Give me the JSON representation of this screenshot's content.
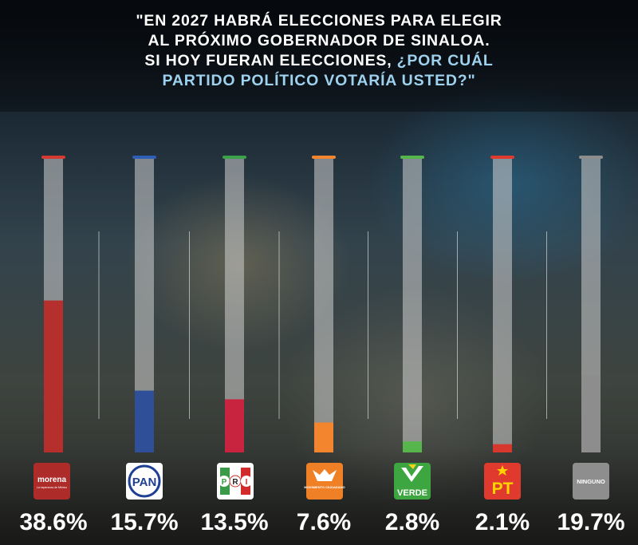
{
  "title": {
    "line1": "\"EN 2027 HABRÁ ELECCIONES PARA ELEGIR",
    "line2": "AL PRÓXIMO GOBERNADOR DE SINALOA.",
    "line3_white": "SI HOY FUERAN ELECCIONES, ",
    "line3_highlight": "¿POR CUÁL",
    "line4": "PARTIDO POLÍTICO VOTARÍA USTED?\""
  },
  "colors": {
    "highlight": "#9ed1ee",
    "track": "#cfcfcf"
  },
  "chart_data": {
    "type": "bar",
    "categories": [
      "morena",
      "PAN",
      "PRI",
      "MOVIMIENTO CIUDADANO",
      "VERDE",
      "PT",
      "NINGUNO"
    ],
    "values": [
      38.6,
      15.7,
      13.5,
      7.6,
      2.8,
      2.1,
      19.7
    ],
    "value_labels": [
      "38.6%",
      "15.7%",
      "13.5%",
      "7.6%",
      "2.8%",
      "2.1%",
      "19.7%"
    ],
    "colors": [
      "#b5302d",
      "#2f4f98",
      "#c8233f",
      "#f2852e",
      "#56b64c",
      "#d7382e",
      "#8d8d8d"
    ],
    "cap_colors": [
      "#d43a2f",
      "#2f5eb8",
      "#3aa34a",
      "#f2852e",
      "#56b64c",
      "#e03a2f",
      "#8d8d8d"
    ],
    "ylim": [
      0,
      75
    ]
  },
  "logos": {
    "morena": {
      "text": "morena",
      "subtext": "La esperanza de México",
      "bg": "#ad2c2a"
    },
    "pan": {
      "text": "PAN",
      "bg": "#ffffff",
      "accent": "#1f3f92"
    },
    "pri": {
      "letters": [
        "P",
        "R",
        "I"
      ],
      "bg": "#ffffff"
    },
    "mc": {
      "text": "MOVIMIENTO CIUDADANO",
      "bg": "#f08025"
    },
    "verde": {
      "text": "VERDE",
      "bg": "#3da640"
    },
    "pt": {
      "text": "PT",
      "bg": "#e03a2f",
      "star": "#ffd400"
    },
    "ninguno": {
      "text": "NINGUNO",
      "bg": "#8e8e8e"
    }
  }
}
